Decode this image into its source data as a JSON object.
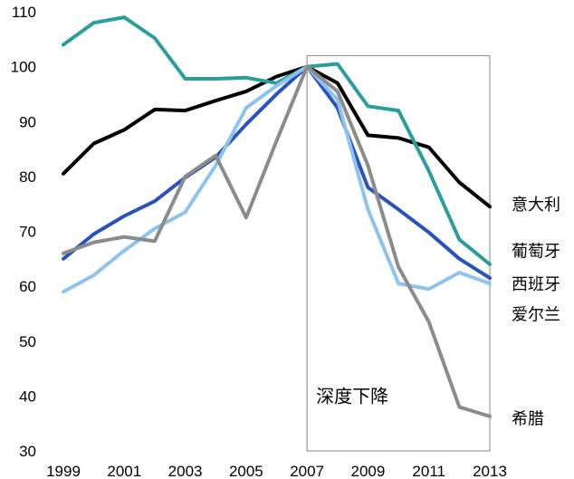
{
  "chart_data": {
    "type": "line",
    "x": [
      1999,
      2000,
      2001,
      2002,
      2003,
      2004,
      2005,
      2006,
      2007,
      2008,
      2009,
      2010,
      2011,
      2012,
      2013
    ],
    "x_tick_labels": [
      "1999",
      "2001",
      "2003",
      "2005",
      "2007",
      "2009",
      "2011",
      "2013"
    ],
    "y_ticks": [
      30,
      40,
      50,
      60,
      70,
      80,
      90,
      100,
      110
    ],
    "ylim": [
      30,
      110
    ],
    "xlim": [
      1999,
      2013
    ],
    "grid": false,
    "series": [
      {
        "name": "意大利",
        "color": "#000000",
        "values": [
          80.5,
          86,
          88.5,
          92.2,
          92,
          93.8,
          95.5,
          98.2,
          100,
          97,
          87.5,
          87,
          85.3,
          78.9,
          74.5
        ]
      },
      {
        "name": "葡萄牙",
        "color": "#2a9d9d",
        "values": [
          104,
          108,
          109,
          105.2,
          97.8,
          97.8,
          98,
          97,
          100,
          100.5,
          92.8,
          92,
          81,
          68.5,
          64
        ]
      },
      {
        "name": "西班牙",
        "color": "#2a52be",
        "values": [
          65,
          69.5,
          72.8,
          75.5,
          79.8,
          83.5,
          89.5,
          95,
          100,
          92.5,
          78,
          74,
          69.8,
          65,
          61.5
        ]
      },
      {
        "name": "爱尔兰",
        "color": "#8cc4ef",
        "values": [
          59,
          62,
          66.5,
          70.5,
          73.5,
          82,
          92.5,
          96.5,
          100,
          94,
          74,
          60.5,
          59.5,
          62.5,
          60.5
        ]
      },
      {
        "name": "希腊",
        "color": "#8c8c8c",
        "values": [
          66,
          68,
          69,
          68.2,
          80,
          83.8,
          72.5,
          86.5,
          100,
          95.5,
          82,
          63.5,
          53.5,
          38,
          36.3
        ]
      }
    ],
    "annotation": {
      "text": "深度下降",
      "box_x": [
        2007,
        2013
      ],
      "box_y": [
        30,
        102
      ]
    }
  }
}
